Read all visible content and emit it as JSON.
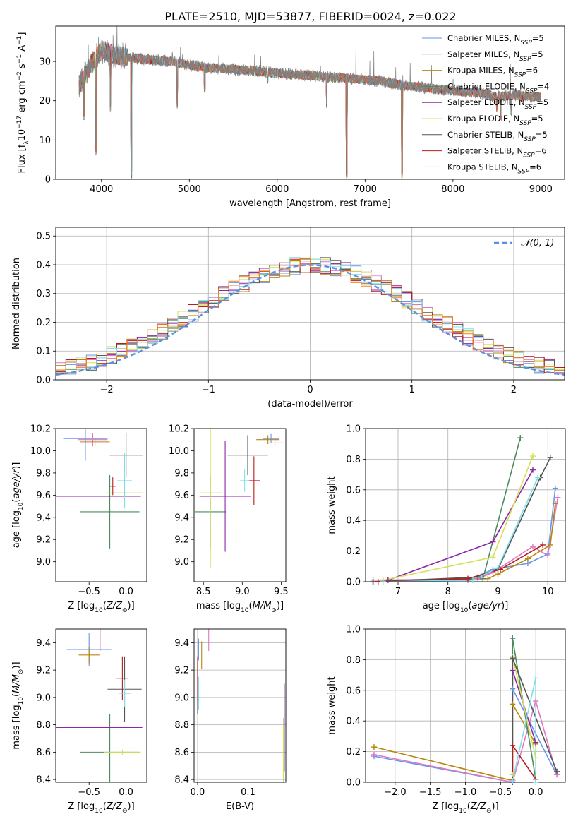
{
  "figure_title": "PLATE=2510, MJD=53877, FIBERID=0024, z=0.022",
  "models": [
    {
      "name": "Chabrier MILES",
      "n": "5",
      "color": "#6495ed"
    },
    {
      "name": "Salpeter MILES",
      "n": "5",
      "color": "#e377c2"
    },
    {
      "name": "Kroupa MILES",
      "n": "6",
      "color": "#b8860b"
    },
    {
      "name": "Chabrier ELODIE",
      "n": "4",
      "color": "#4b8b5f"
    },
    {
      "name": "Salpeter ELODIE",
      "n": "5",
      "color": "#8e24aa"
    },
    {
      "name": "Kroupa ELODIE",
      "n": "5",
      "color": "#d4e157"
    },
    {
      "name": "Chabrier STELIB",
      "n": "5",
      "color": "#555555"
    },
    {
      "name": "Salpeter STELIB",
      "n": "6",
      "color": "#b71c1c"
    },
    {
      "name": "Kroupa STELIB",
      "n": "6",
      "color": "#80deea"
    }
  ],
  "extra_colors": {
    "orange": "#ff7f0e",
    "spectrum_gray": "#808080",
    "red_orange": "#e06030"
  },
  "chart_data": [
    {
      "type": "line",
      "id": "spectrum",
      "xlabel": "wavelength [Angstrom, rest frame]",
      "ylabel": "Flux [f_λ 10^-17 erg cm^-2 s^-1 A^-1]",
      "xlim": [
        3480,
        9270
      ],
      "ylim": [
        0,
        39
      ],
      "xticks": [
        4000,
        5000,
        6000,
        7000,
        8000,
        9000
      ],
      "yticks": [
        0,
        10,
        20,
        30
      ],
      "continuum_x": [
        3750,
        3900,
        4000,
        4100,
        4300,
        4500,
        4800,
        5000,
        5200,
        5500,
        5800,
        6000,
        6300,
        6600,
        6900,
        7200,
        7400,
        7600,
        7800,
        8000,
        8300,
        8500,
        8700,
        8900,
        9000
      ],
      "continuum_y": [
        24,
        30,
        33,
        32,
        31,
        30.5,
        30,
        29,
        28.5,
        28,
        27.5,
        27,
        26.5,
        26,
        25.5,
        25,
        24,
        23.5,
        23,
        22.5,
        22,
        21,
        21.5,
        21,
        21
      ],
      "dips": [
        [
          3800,
          15
        ],
        [
          3935,
          6
        ],
        [
          4102,
          17
        ],
        [
          4340,
          0
        ],
        [
          4862,
          18
        ],
        [
          5175,
          22
        ],
        [
          5890,
          24
        ],
        [
          6563,
          18
        ],
        [
          6790,
          0
        ],
        [
          7420,
          0
        ],
        [
          8500,
          17
        ],
        [
          8542,
          15
        ],
        [
          8662,
          16
        ]
      ]
    },
    {
      "type": "bar",
      "id": "residuals",
      "xlabel": "(data-model)/error",
      "ylabel": "Normed distribution",
      "xlim": [
        -2.5,
        2.5
      ],
      "ylim": [
        0,
        0.53
      ],
      "xticks": [
        -2,
        -1,
        0,
        1,
        2
      ],
      "yticks": [
        0.0,
        0.1,
        0.2,
        0.3,
        0.4,
        0.5
      ],
      "bin_width": 0.1,
      "legend_label": "𝒩(0, 1)",
      "grid": true
    },
    {
      "type": "scatter",
      "id": "age-vs-z",
      "xlabel": "Z [log10(Z/Z☉)]",
      "ylabel": "age [log10(age/yr)]",
      "xlim": [
        -0.95,
        0.28
      ],
      "ylim": [
        8.82,
        10.2
      ],
      "xticks": [
        -0.5,
        0.0
      ],
      "yticks": [
        9.0,
        9.2,
        9.4,
        9.6,
        9.8,
        10.0,
        10.2
      ],
      "points": [
        {
          "model": 0,
          "x": -0.55,
          "y": 10.11,
          "xerr": 0.3,
          "yerr": 0.2
        },
        {
          "model": 1,
          "x": -0.45,
          "y": 10.1,
          "xerr": 0.2,
          "yerr": 0.06
        },
        {
          "model": 2,
          "x": -0.42,
          "y": 10.08,
          "xerr": 0.2,
          "yerr": 0.04
        },
        {
          "model": 3,
          "x": -0.22,
          "y": 9.45,
          "xerr": 0.4,
          "yerr": 0.33
        },
        {
          "model": 4,
          "x": -0.4,
          "y": 9.59,
          "xerr": 0.6,
          "yerr": 0.0
        },
        {
          "model": 5,
          "x": -0.02,
          "y": 9.62,
          "xerr": 0.25,
          "yerr": 0.02
        },
        {
          "model": 6,
          "x": 0.0,
          "y": 9.96,
          "xerr": 0.22,
          "yerr": 0.2
        },
        {
          "model": 7,
          "x": -0.18,
          "y": 9.68,
          "xerr": 0.04,
          "yerr": 0.08
        },
        {
          "model": 8,
          "x": -0.02,
          "y": 9.73,
          "xerr": 0.1,
          "yerr": 0.25
        }
      ]
    },
    {
      "type": "scatter",
      "id": "age-vs-mass",
      "xlabel": "mass [log10(M/M☉)]",
      "ylabel": "",
      "xlim": [
        8.38,
        9.56
      ],
      "ylim": [
        8.82,
        10.2
      ],
      "xticks": [
        8.5,
        9.0,
        9.5
      ],
      "yticks": [
        9.0,
        9.2,
        9.4,
        9.6,
        9.8,
        10.0,
        10.2
      ],
      "points": [
        {
          "model": 0,
          "x": 9.37,
          "y": 10.11,
          "xerr": 0.1,
          "yerr": 0.04
        },
        {
          "model": 1,
          "x": 9.42,
          "y": 10.07,
          "xerr": 0.12,
          "yerr": 0.03
        },
        {
          "model": 2,
          "x": 9.33,
          "y": 10.1,
          "xerr": 0.15,
          "yerr": 0.04
        },
        {
          "model": 3,
          "x": 8.59,
          "y": 9.45,
          "xerr": 0.2,
          "yerr": 0.33
        },
        {
          "model": 4,
          "x": 8.78,
          "y": 9.59,
          "xerr": 0.33,
          "yerr": 0.5
        },
        {
          "model": 5,
          "x": 8.59,
          "y": 9.62,
          "xerr": 0.14,
          "yerr": 0.68
        },
        {
          "model": 6,
          "x": 9.07,
          "y": 9.96,
          "xerr": 0.26,
          "yerr": 0.18
        },
        {
          "model": 7,
          "x": 9.15,
          "y": 9.73,
          "xerr": 0.08,
          "yerr": 0.22
        },
        {
          "model": 8,
          "x": 9.03,
          "y": 9.73,
          "xerr": 0.06,
          "yerr": 0.1
        }
      ]
    },
    {
      "type": "line",
      "id": "massweight-vs-age",
      "xlabel": "age [log10(age/yr)]",
      "ylabel": "mass weight",
      "xlim": [
        6.35,
        10.35
      ],
      "ylim": [
        0,
        1.0
      ],
      "xticks": [
        7,
        8,
        9,
        10
      ],
      "yticks": [
        0.0,
        0.2,
        0.4,
        0.6,
        0.8,
        1.0
      ],
      "grid": true,
      "series": [
        {
          "model": 0,
          "x": [
            6.5,
            8.4,
            8.9,
            9.6,
            10.0,
            10.15
          ],
          "y": [
            0.0,
            0.01,
            0.08,
            0.12,
            0.18,
            0.61
          ]
        },
        {
          "model": 1,
          "x": [
            6.5,
            8.6,
            8.9,
            9.7,
            10.0,
            10.2
          ],
          "y": [
            0.01,
            0.02,
            0.06,
            0.23,
            0.17,
            0.55
          ]
        },
        {
          "model": 2,
          "x": [
            6.5,
            8.8,
            9.0,
            9.6,
            10.05,
            10.15
          ],
          "y": [
            0.0,
            0.02,
            0.05,
            0.15,
            0.24,
            0.51
          ]
        },
        {
          "model": 3,
          "x": [
            6.5,
            8.7,
            9.45
          ],
          "y": [
            0.0,
            0.02,
            0.94
          ]
        },
        {
          "model": 4,
          "x": [
            6.8,
            8.9,
            9.7
          ],
          "y": [
            0.01,
            0.26,
            0.73
          ]
        },
        {
          "model": 5,
          "x": [
            6.7,
            8.9,
            9.7
          ],
          "y": [
            0.01,
            0.16,
            0.82
          ]
        },
        {
          "model": 6,
          "x": [
            6.5,
            8.6,
            9.0,
            9.85,
            10.05
          ],
          "y": [
            0.0,
            0.03,
            0.08,
            0.68,
            0.81
          ]
        },
        {
          "model": 7,
          "x": [
            6.6,
            8.4,
            9.05,
            9.9
          ],
          "y": [
            0.0,
            0.02,
            0.08,
            0.24
          ]
        },
        {
          "model": 8,
          "x": [
            6.7,
            8.5,
            9.0,
            9.8
          ],
          "y": [
            0.0,
            0.01,
            0.09,
            0.68
          ]
        }
      ]
    },
    {
      "type": "scatter",
      "id": "mass-vs-z",
      "xlabel": "Z [log10(Z/Z☉)]",
      "ylabel": "mass [log10(M/M☉)]",
      "xlim": [
        -0.95,
        0.28
      ],
      "ylim": [
        8.38,
        9.5
      ],
      "xticks": [
        -0.5,
        0.0
      ],
      "yticks": [
        8.4,
        8.6,
        8.8,
        9.0,
        9.2,
        9.4
      ],
      "points": [
        {
          "model": 0,
          "x": -0.5,
          "y": 9.35,
          "xerr": 0.3,
          "yerr": 0.12
        },
        {
          "model": 1,
          "x": -0.35,
          "y": 9.42,
          "xerr": 0.2,
          "yerr": 0.08
        },
        {
          "model": 2,
          "x": -0.5,
          "y": 9.31,
          "xerr": 0.14,
          "yerr": 0.06
        },
        {
          "model": 3,
          "x": -0.22,
          "y": 8.6,
          "xerr": 0.4,
          "yerr": 0.28
        },
        {
          "model": 4,
          "x": -0.4,
          "y": 8.78,
          "xerr": 0.62,
          "yerr": 0.0
        },
        {
          "model": 5,
          "x": -0.05,
          "y": 8.6,
          "xerr": 0.25,
          "yerr": 0.02
        },
        {
          "model": 6,
          "x": -0.02,
          "y": 9.06,
          "xerr": 0.23,
          "yerr": 0.24
        },
        {
          "model": 7,
          "x": -0.05,
          "y": 9.14,
          "xerr": 0.08,
          "yerr": 0.16
        },
        {
          "model": 8,
          "x": -0.02,
          "y": 9.03,
          "xerr": 0.08,
          "yerr": 0.1
        }
      ]
    },
    {
      "type": "scatter",
      "id": "mass-vs-ebv",
      "xlabel": "E(B-V)",
      "ylabel": "",
      "xlim": [
        -0.007,
        0.175
      ],
      "ylim": [
        8.38,
        9.5
      ],
      "xticks": [
        0.0,
        0.1
      ],
      "yticks": [
        8.4,
        8.6,
        8.8,
        9.0,
        9.2,
        9.4
      ],
      "grid": true,
      "points": [
        {
          "model": 0,
          "x": 0.002,
          "y": 9.35,
          "yerr": 0.08
        },
        {
          "model": 1,
          "x": 0.022,
          "y": 9.42,
          "yerr": 0.08
        },
        {
          "model": 2,
          "x": 0.008,
          "y": 9.31,
          "yerr": 0.1
        },
        {
          "model": 3,
          "x": 0.171,
          "y": 8.6,
          "yerr": 0.25
        },
        {
          "model": 4,
          "x": 0.172,
          "y": 8.78,
          "yerr": 0.32
        },
        {
          "model": 5,
          "x": 0.17,
          "y": 8.6,
          "yerr": 0.2
        },
        {
          "model": 6,
          "x": 0.0,
          "y": 9.06,
          "yerr": 0.18
        },
        {
          "model": 7,
          "x": 0.0,
          "y": 9.14,
          "yerr": 0.16
        },
        {
          "model": 8,
          "x": 0.002,
          "y": 9.03,
          "yerr": 0.12
        }
      ]
    },
    {
      "type": "line",
      "id": "massweight-vs-z",
      "xlabel": "Z [log10(Z/Z☉)]",
      "ylabel": "mass weight",
      "xlim": [
        -2.42,
        0.42
      ],
      "ylim": [
        0,
        1.0
      ],
      "xticks": [
        -2.0,
        -1.5,
        -1.0,
        -0.5,
        0.0
      ],
      "yticks": [
        0.0,
        0.2,
        0.4,
        0.6,
        0.8,
        1.0
      ],
      "grid": true,
      "series": [
        {
          "model": 0,
          "x": [
            -2.3,
            -0.33,
            -0.33,
            0.3
          ],
          "y": [
            0.17,
            0.0,
            0.61,
            0.05
          ]
        },
        {
          "model": 1,
          "x": [
            -2.3,
            -0.33,
            0.0,
            0.3
          ],
          "y": [
            0.18,
            0.0,
            0.53,
            0.05
          ]
        },
        {
          "model": 2,
          "x": [
            -2.3,
            -0.33,
            -0.33,
            0.0
          ],
          "y": [
            0.23,
            0.01,
            0.51,
            0.25
          ]
        },
        {
          "model": 3,
          "x": [
            -0.33,
            -0.33,
            0.0
          ],
          "y": [
            0.05,
            0.94,
            0.02
          ]
        },
        {
          "model": 4,
          "x": [
            -0.33,
            -0.33,
            0.0
          ],
          "y": [
            0.0,
            0.73,
            0.26
          ]
        },
        {
          "model": 5,
          "x": [
            -0.33,
            -0.33,
            0.0
          ],
          "y": [
            0.05,
            0.82,
            0.16
          ]
        },
        {
          "model": 6,
          "x": [
            -0.33,
            -0.33,
            0.3
          ],
          "y": [
            0.01,
            0.81,
            0.07
          ]
        },
        {
          "model": 7,
          "x": [
            -0.33,
            -0.33,
            0.0
          ],
          "y": [
            0.02,
            0.24,
            0.02
          ]
        },
        {
          "model": 8,
          "x": [
            -0.33,
            0.0,
            0.0
          ],
          "y": [
            0.01,
            0.68,
            0.0
          ]
        }
      ]
    }
  ]
}
